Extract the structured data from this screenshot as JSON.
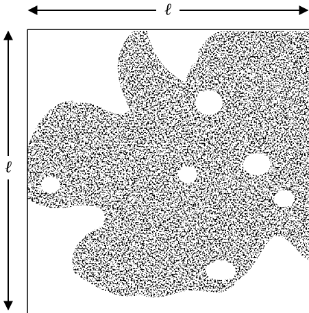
{
  "labels": {
    "horizontal": "ℓ",
    "vertical": "ℓ"
  }
}
